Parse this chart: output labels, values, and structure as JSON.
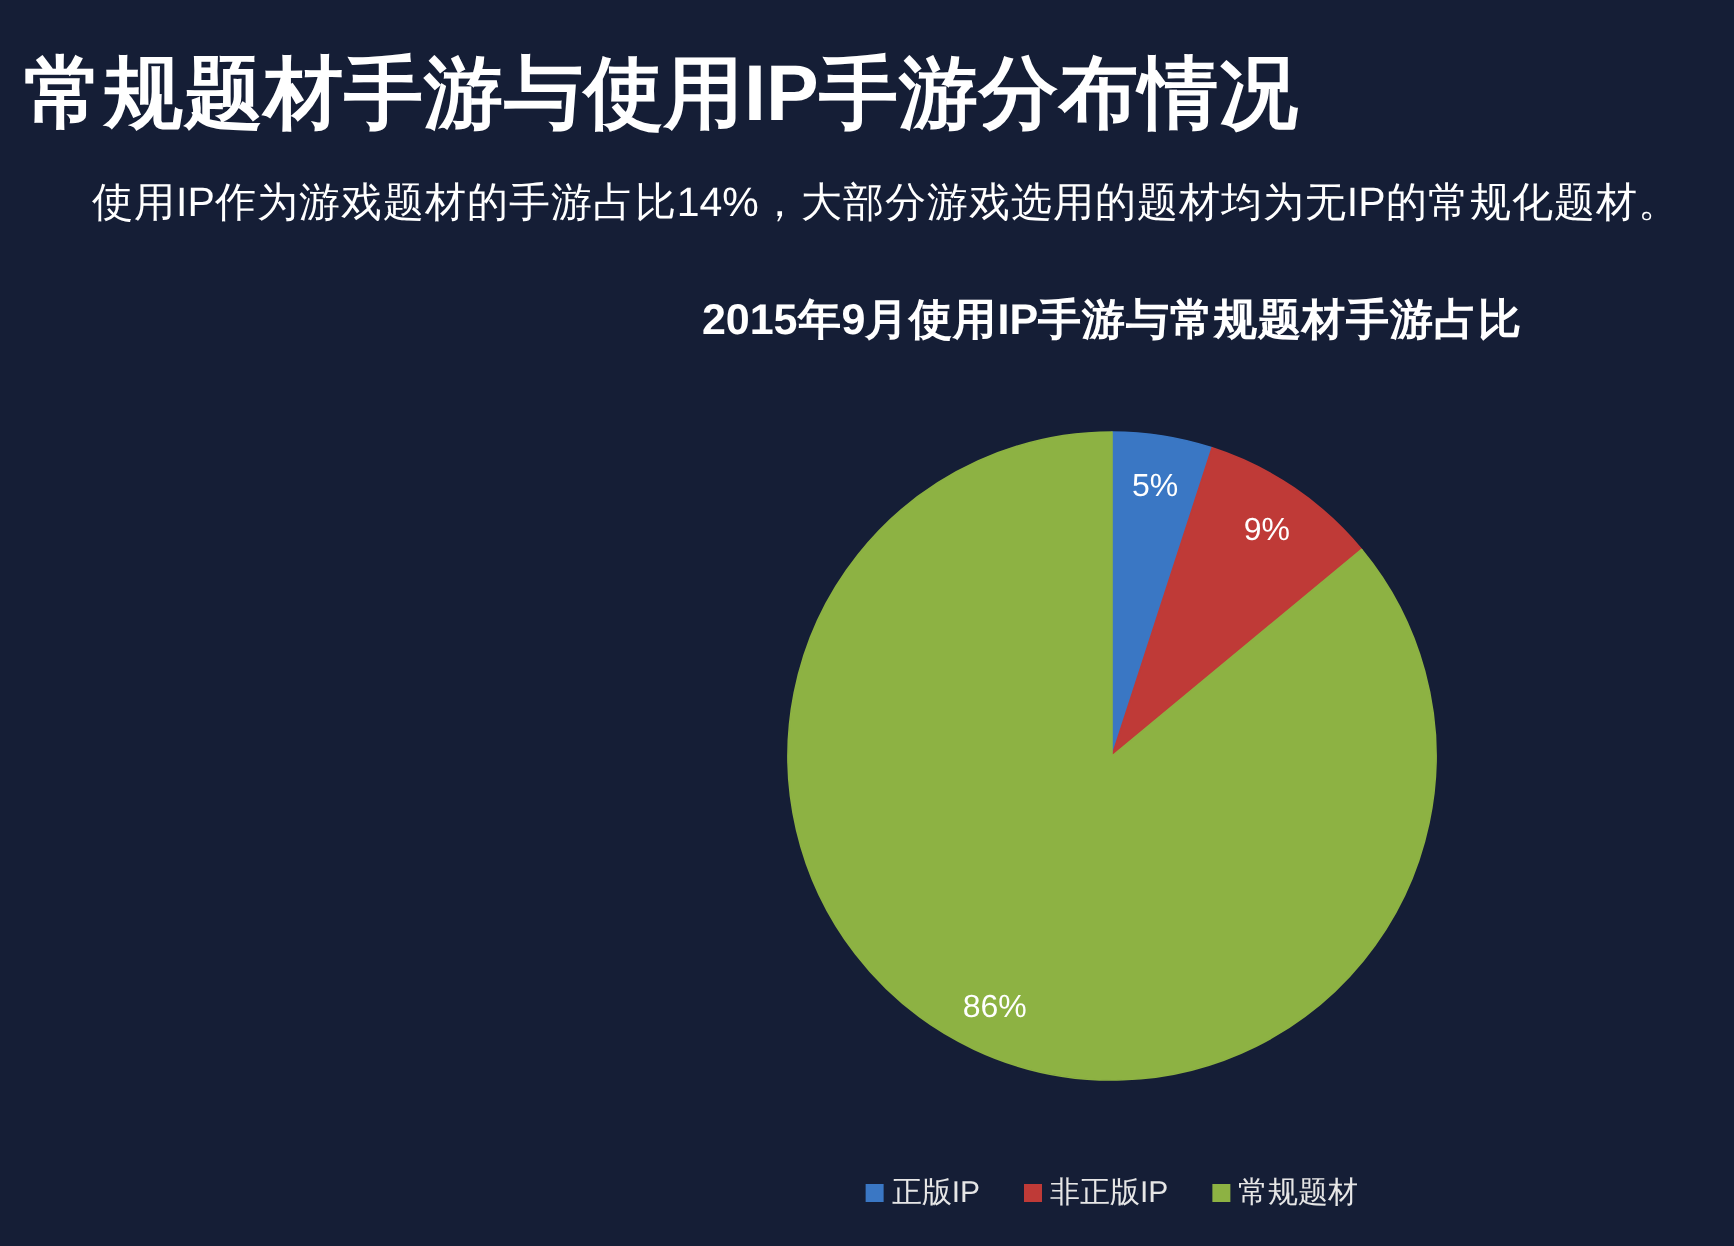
{
  "chart_data": {
    "type": "pie",
    "title": "常规题材手游与使用IP手游分布情况",
    "subtitle": "使用IP作为游戏题材的手游占比14%，大部分游戏选用的题材均为无IP的常规化题材。",
    "annotations": [
      "2015年9月使用IP手游与常规题材手游占比"
    ],
    "categories": [
      "正版IP",
      "非正版IP",
      "常规题材"
    ],
    "values": [
      5,
      9,
      86
    ],
    "colors": [
      "#3a77c4",
      "#bf3a37",
      "#8db243"
    ],
    "value_labels": [
      "5%",
      "9%",
      "86%"
    ],
    "legend": "bottom"
  }
}
